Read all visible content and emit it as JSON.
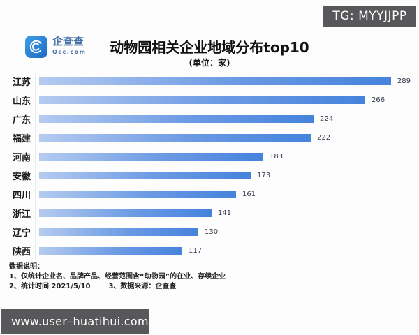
{
  "watermark_top": {
    "label": "TG: MYYJJPP"
  },
  "logo": {
    "name": "企查查",
    "domain": "Qcc.com"
  },
  "header": {
    "title": "动物园相关企业地域分布top10",
    "subtitle": "(单位：家)"
  },
  "chart_data": {
    "type": "bar",
    "orientation": "horizontal",
    "title": "动物园相关企业地域分布top10",
    "unit": "家",
    "categories": [
      "江苏",
      "山东",
      "广东",
      "福建",
      "河南",
      "安徽",
      "四川",
      "浙江",
      "辽宁",
      "陕西"
    ],
    "values": [
      289,
      266,
      224,
      222,
      183,
      173,
      161,
      141,
      130,
      117
    ],
    "xlim": [
      0,
      289
    ],
    "grid": false,
    "legend": false,
    "bar_color_start": "#b5cbf0",
    "bar_color_mid": "#6c9ae4",
    "bar_color_end": "#4583dc"
  },
  "notes": {
    "heading": "数据说明：",
    "line1": "1、仅统计企业名、品牌产品、经营范围含“动物园”的在业、存续企业",
    "line2_item1": "2、统计时间 2021/5/10",
    "line2_item2": "3、数据来源：企查查"
  },
  "watermark_bottom": {
    "label": "www.user–huatihui.com"
  }
}
